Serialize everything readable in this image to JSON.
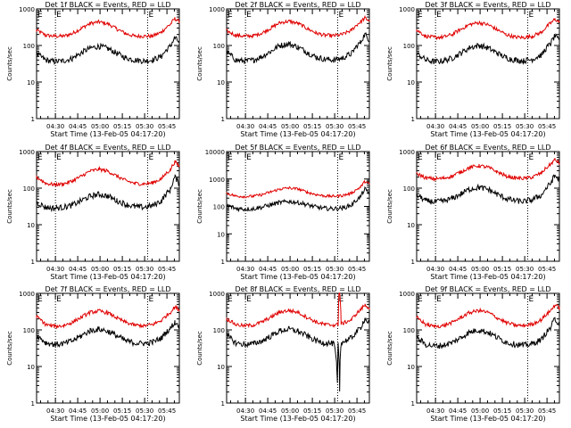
{
  "figure": {
    "subtitle": "Start Time (13-Feb-05 04:17:20)",
    "ylabel": "Counts/sec",
    "marker": "E"
  },
  "chart_data": [
    {
      "type": "line",
      "title": "Det 1f BLACK = Events, RED = LLD",
      "xlabel": "Start Time (13-Feb-05 04:17:20)",
      "ylabel": "Counts/sec",
      "yscale": "log",
      "ylim": [
        1,
        1000
      ],
      "xlim_minutes": [
        0,
        96
      ],
      "xticks": [
        "04:30",
        "04:45",
        "05:00",
        "05:15",
        "05:30",
        "05:45"
      ],
      "yticks": [
        "1",
        "10",
        "100",
        "1000"
      ],
      "vlines_minutes": [
        12.7,
        74.7
      ],
      "markers": [
        "E",
        "E"
      ],
      "series": [
        {
          "name": "LLD",
          "color": "#e00000",
          "x": [
            0,
            6,
            12,
            18,
            24,
            30,
            36,
            42,
            48,
            54,
            60,
            66,
            72,
            78,
            84,
            90,
            93,
            96
          ],
          "values": [
            260,
            190,
            180,
            180,
            210,
            290,
            400,
            440,
            390,
            280,
            210,
            180,
            180,
            180,
            230,
            380,
            540,
            450
          ]
        },
        {
          "name": "Events",
          "color": "#000000",
          "x": [
            0,
            6,
            12,
            18,
            24,
            30,
            36,
            42,
            48,
            54,
            60,
            66,
            72,
            78,
            84,
            90,
            93,
            96
          ],
          "values": [
            58,
            40,
            36,
            38,
            44,
            62,
            85,
            95,
            82,
            60,
            46,
            40,
            38,
            40,
            50,
            95,
            160,
            120
          ]
        }
      ]
    },
    {
      "type": "line",
      "title": "Det 2f BLACK = Events, RED = LLD",
      "xlabel": "Start Time (13-Feb-05 04:17:20)",
      "ylabel": "Counts/sec",
      "yscale": "log",
      "ylim": [
        1,
        1000
      ],
      "xlim_minutes": [
        0,
        96
      ],
      "xticks": [
        "04:30",
        "04:45",
        "05:00",
        "05:15",
        "05:30",
        "05:45"
      ],
      "yticks": [
        "1",
        "10",
        "100",
        "1000"
      ],
      "vlines_minutes": [
        12.7,
        74.7
      ],
      "markers": [
        "E",
        "E"
      ],
      "series": [
        {
          "name": "LLD",
          "color": "#e00000",
          "x": [
            0,
            6,
            12,
            18,
            24,
            30,
            36,
            42,
            48,
            54,
            60,
            66,
            72,
            78,
            84,
            90,
            93,
            96
          ],
          "values": [
            250,
            190,
            180,
            185,
            220,
            300,
            420,
            460,
            400,
            290,
            220,
            190,
            185,
            200,
            260,
            440,
            560,
            470
          ]
        },
        {
          "name": "Events",
          "color": "#000000",
          "x": [
            0,
            6,
            12,
            18,
            24,
            30,
            36,
            42,
            48,
            54,
            60,
            66,
            72,
            78,
            84,
            90,
            93,
            96
          ],
          "values": [
            65,
            40,
            37,
            40,
            50,
            70,
            100,
            110,
            90,
            65,
            48,
            42,
            40,
            45,
            60,
            120,
            200,
            140
          ]
        }
      ]
    },
    {
      "type": "line",
      "title": "Det 3f BLACK = Events, RED = LLD",
      "xlabel": "Start Time (13-Feb-05 04:17:20)",
      "ylabel": "Counts/sec",
      "yscale": "log",
      "ylim": [
        1,
        1000
      ],
      "xlim_minutes": [
        0,
        96
      ],
      "xticks": [
        "04:30",
        "04:45",
        "05:00",
        "05:15",
        "05:30",
        "05:45"
      ],
      "yticks": [
        "1",
        "10",
        "100",
        "1000"
      ],
      "vlines_minutes": [
        12.7,
        74.7
      ],
      "markers": [
        "E",
        "E"
      ],
      "series": [
        {
          "name": "LLD",
          "color": "#e00000",
          "x": [
            0,
            6,
            12,
            18,
            24,
            30,
            36,
            42,
            48,
            54,
            60,
            66,
            72,
            78,
            84,
            90,
            93,
            96
          ],
          "values": [
            260,
            180,
            165,
            170,
            200,
            280,
            380,
            420,
            370,
            270,
            200,
            170,
            165,
            180,
            230,
            400,
            520,
            440
          ]
        },
        {
          "name": "Events",
          "color": "#000000",
          "x": [
            0,
            6,
            12,
            18,
            24,
            30,
            36,
            42,
            48,
            54,
            60,
            66,
            72,
            78,
            84,
            90,
            93,
            96
          ],
          "values": [
            60,
            40,
            36,
            38,
            45,
            62,
            88,
            100,
            85,
            62,
            46,
            40,
            38,
            42,
            55,
            110,
            180,
            130
          ]
        }
      ]
    },
    {
      "type": "line",
      "title": "Det 4f BLACK = Events, RED = LLD",
      "xlabel": "Start Time (13-Feb-05 04:17:20)",
      "ylabel": "Counts/sec",
      "yscale": "log",
      "ylim": [
        1,
        1000
      ],
      "xlim_minutes": [
        0,
        96
      ],
      "xticks": [
        "04:30",
        "04:45",
        "05:00",
        "05:15",
        "05:30",
        "05:45"
      ],
      "yticks": [
        "1",
        "10",
        "100",
        "1000"
      ],
      "vlines_minutes": [
        12.7,
        74.7
      ],
      "markers": [
        "E",
        "E"
      ],
      "series": [
        {
          "name": "LLD",
          "color": "#e00000",
          "x": [
            0,
            6,
            12,
            18,
            24,
            30,
            36,
            42,
            48,
            54,
            60,
            66,
            72,
            78,
            84,
            90,
            93,
            96
          ],
          "values": [
            200,
            135,
            125,
            130,
            155,
            210,
            290,
            330,
            290,
            210,
            160,
            135,
            130,
            140,
            180,
            320,
            520,
            400
          ]
        },
        {
          "name": "Events",
          "color": "#000000",
          "x": [
            0,
            6,
            12,
            18,
            24,
            30,
            36,
            42,
            48,
            54,
            60,
            66,
            72,
            78,
            84,
            90,
            93,
            96
          ],
          "values": [
            40,
            30,
            28,
            30,
            34,
            45,
            60,
            68,
            60,
            45,
            36,
            31,
            30,
            33,
            45,
            90,
            200,
            130
          ]
        }
      ]
    },
    {
      "type": "line",
      "title": "Det 5f BLACK = Events, RED = LLD",
      "xlabel": "Start Time (13-Feb-05 04:17:20)",
      "ylabel": "Counts/sec",
      "yscale": "log",
      "ylim": [
        1,
        10000
      ],
      "xlim_minutes": [
        0,
        96
      ],
      "xticks": [
        "04:30",
        "04:45",
        "05:00",
        "05:15",
        "05:30",
        "05:45"
      ],
      "yticks": [
        "1",
        "10",
        "100",
        "1000",
        "10000"
      ],
      "vlines_minutes": [
        12.7,
        74.7
      ],
      "markers": [
        "E",
        "E"
      ],
      "series": [
        {
          "name": "LLD",
          "color": "#e00000",
          "x": [
            0,
            6,
            12,
            18,
            24,
            30,
            36,
            42,
            48,
            54,
            60,
            66,
            72,
            78,
            84,
            90,
            93,
            96
          ],
          "values": [
            300,
            240,
            230,
            235,
            270,
            340,
            430,
            470,
            430,
            330,
            270,
            240,
            235,
            250,
            300,
            500,
            800,
            650
          ]
        },
        {
          "name": "Events",
          "color": "#000000",
          "x": [
            0,
            6,
            12,
            18,
            24,
            30,
            36,
            42,
            48,
            54,
            60,
            66,
            72,
            78,
            84,
            90,
            93,
            96
          ],
          "values": [
            110,
            85,
            80,
            82,
            95,
            115,
            140,
            150,
            140,
            115,
            95,
            85,
            82,
            88,
            110,
            220,
            420,
            300
          ]
        }
      ]
    },
    {
      "type": "line",
      "title": "Det 6f BLACK = Events, RED = LLD",
      "xlabel": "Start Time (13-Feb-05 04:17:20)",
      "ylabel": "Counts/sec",
      "yscale": "log",
      "ylim": [
        1,
        1000
      ],
      "xlim_minutes": [
        0,
        96
      ],
      "xticks": [
        "04:30",
        "04:45",
        "05:00",
        "05:15",
        "05:30",
        "05:45"
      ],
      "yticks": [
        "1",
        "10",
        "100",
        "1000"
      ],
      "vlines_minutes": [
        12.7,
        74.7
      ],
      "markers": [
        "E",
        "E"
      ],
      "series": [
        {
          "name": "LLD",
          "color": "#e00000",
          "x": [
            0,
            6,
            12,
            18,
            24,
            30,
            36,
            42,
            48,
            54,
            60,
            66,
            72,
            78,
            84,
            90,
            93,
            96
          ],
          "values": [
            250,
            190,
            180,
            185,
            215,
            280,
            370,
            410,
            370,
            280,
            215,
            190,
            185,
            200,
            260,
            440,
            600,
            480
          ]
        },
        {
          "name": "Events",
          "color": "#000000",
          "x": [
            0,
            6,
            12,
            18,
            24,
            30,
            36,
            42,
            48,
            54,
            60,
            66,
            72,
            78,
            84,
            90,
            93,
            96
          ],
          "values": [
            65,
            45,
            42,
            44,
            52,
            70,
            95,
            105,
            92,
            68,
            52,
            45,
            43,
            48,
            65,
            130,
            220,
            160
          ]
        }
      ]
    },
    {
      "type": "line",
      "title": "Det 7f BLACK = Events, RED = LLD",
      "xlabel": "Start Time (13-Feb-05 04:17:20)",
      "ylabel": "Counts/sec",
      "yscale": "log",
      "ylim": [
        1,
        1000
      ],
      "xlim_minutes": [
        0,
        96
      ],
      "xticks": [
        "04:30",
        "04:45",
        "05:00",
        "05:15",
        "05:30",
        "05:45"
      ],
      "yticks": [
        "1",
        "10",
        "100",
        "1000"
      ],
      "vlines_minutes": [
        12.7,
        74.7
      ],
      "markers": [
        "E",
        "E"
      ],
      "series": [
        {
          "name": "LLD",
          "color": "#e00000",
          "x": [
            0,
            6,
            12,
            18,
            24,
            30,
            36,
            42,
            48,
            54,
            60,
            66,
            72,
            78,
            84,
            90,
            93,
            96
          ],
          "values": [
            230,
            140,
            125,
            130,
            160,
            220,
            300,
            330,
            290,
            210,
            160,
            135,
            130,
            140,
            180,
            300,
            420,
            360
          ]
        },
        {
          "name": "Events",
          "color": "#000000",
          "x": [
            0,
            6,
            12,
            18,
            24,
            30,
            36,
            42,
            48,
            54,
            60,
            66,
            72,
            78,
            84,
            90,
            93,
            96
          ],
          "values": [
            70,
            45,
            40,
            42,
            50,
            68,
            95,
            105,
            92,
            68,
            50,
            44,
            42,
            46,
            60,
            110,
            160,
            130
          ]
        }
      ]
    },
    {
      "type": "line",
      "title": "Det 8f BLACK = Events, RED = LLD",
      "xlabel": "Start Time (13-Feb-05 04:17:20)",
      "ylabel": "Counts/sec",
      "yscale": "log",
      "ylim": [
        1,
        1000
      ],
      "xlim_minutes": [
        0,
        96
      ],
      "xticks": [
        "04:30",
        "04:45",
        "05:00",
        "05:15",
        "05:30",
        "05:45"
      ],
      "yticks": [
        "1",
        "10",
        "100",
        "1000"
      ],
      "vlines_minutes": [
        12.7,
        74.7
      ],
      "markers": [
        "E",
        "E"
      ],
      "series": [
        {
          "name": "LLD",
          "color": "#e00000",
          "x": [
            0,
            6,
            12,
            18,
            24,
            30,
            36,
            42,
            48,
            54,
            60,
            66,
            72,
            75,
            75.5,
            76,
            77,
            78,
            84,
            90,
            93,
            96
          ],
          "values": [
            200,
            140,
            130,
            135,
            165,
            225,
            310,
            340,
            300,
            220,
            165,
            140,
            135,
            140,
            1000,
            1000,
            150,
            150,
            190,
            350,
            480,
            400
          ]
        },
        {
          "name": "Events",
          "color": "#000000",
          "x": [
            0,
            6,
            12,
            18,
            24,
            30,
            36,
            42,
            48,
            54,
            60,
            66,
            72,
            74,
            74.5,
            75,
            76,
            77,
            78,
            84,
            90,
            93,
            96
          ],
          "values": [
            70,
            44,
            40,
            42,
            50,
            68,
            95,
            105,
            92,
            68,
            50,
            44,
            42,
            10,
            3,
            40,
            2,
            45,
            46,
            60,
            110,
            200,
            150
          ]
        }
      ]
    },
    {
      "type": "line",
      "title": "Det 9f BLACK = Events, RED = LLD",
      "xlabel": "Start Time (13-Feb-05 04:17:20)",
      "ylabel": "Counts/sec",
      "yscale": "log",
      "ylim": [
        1,
        1000
      ],
      "xlim_minutes": [
        0,
        96
      ],
      "xticks": [
        "04:30",
        "04:45",
        "05:00",
        "05:15",
        "05:30",
        "05:45"
      ],
      "yticks": [
        "1",
        "10",
        "100",
        "1000"
      ],
      "vlines_minutes": [
        12.7,
        74.7
      ],
      "markers": [
        "E",
        "E"
      ],
      "series": [
        {
          "name": "LLD",
          "color": "#e00000",
          "x": [
            0,
            6,
            12,
            18,
            24,
            30,
            36,
            42,
            48,
            54,
            60,
            66,
            72,
            78,
            84,
            90,
            93,
            96
          ],
          "values": [
            220,
            140,
            125,
            130,
            160,
            220,
            300,
            340,
            300,
            215,
            160,
            135,
            130,
            145,
            190,
            330,
            480,
            400
          ]
        },
        {
          "name": "Events",
          "color": "#000000",
          "x": [
            0,
            6,
            12,
            18,
            24,
            30,
            36,
            42,
            48,
            54,
            60,
            66,
            72,
            78,
            84,
            90,
            93,
            96
          ],
          "values": [
            60,
            40,
            36,
            38,
            45,
            62,
            88,
            100,
            85,
            62,
            46,
            40,
            38,
            42,
            55,
            110,
            200,
            140
          ]
        }
      ]
    }
  ]
}
